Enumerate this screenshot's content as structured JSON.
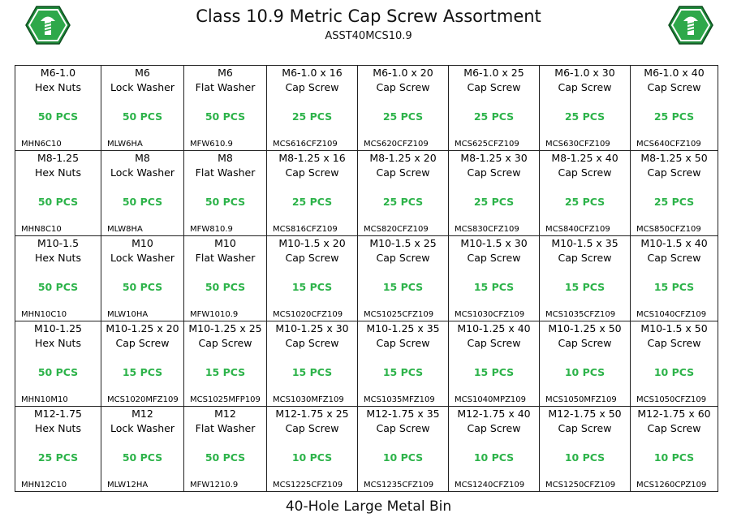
{
  "header": {
    "title": "Class 10.9 Metric Cap Screw Assortment",
    "subtitle": "ASST40MCS10.9"
  },
  "grid": {
    "rows": [
      [
        [
          "M6-1.0",
          "Hex Nuts",
          "50 PCS",
          "MHN6C10"
        ],
        [
          "M6",
          "Lock Washer",
          "50 PCS",
          "MLW6HA"
        ],
        [
          "M6",
          "Flat Washer",
          "50 PCS",
          "MFW610.9"
        ],
        [
          "M6-1.0 x 16",
          "Cap Screw",
          "25 PCS",
          "MCS616CFZ109"
        ],
        [
          "M6-1.0 x 20",
          "Cap Screw",
          "25 PCS",
          "MCS620CFZ109"
        ],
        [
          "M6-1.0 x 25",
          "Cap Screw",
          "25 PCS",
          "MCS625CFZ109"
        ],
        [
          "M6-1.0 x 30",
          "Cap Screw",
          "25 PCS",
          "MCS630CFZ109"
        ],
        [
          "M6-1.0 x 40",
          "Cap Screw",
          "25 PCS",
          "MCS640CFZ109"
        ]
      ],
      [
        [
          "M8-1.25",
          "Hex Nuts",
          "50 PCS",
          "MHN8C10"
        ],
        [
          "M8",
          "Lock Washer",
          "50 PCS",
          "MLW8HA"
        ],
        [
          "M8",
          "Flat Washer",
          "50 PCS",
          "MFW810.9"
        ],
        [
          "M8-1.25 x 16",
          "Cap Screw",
          "25 PCS",
          "MCS816CFZ109"
        ],
        [
          "M8-1.25 x 20",
          "Cap Screw",
          "25 PCS",
          "MCS820CFZ109"
        ],
        [
          "M8-1.25 x 30",
          "Cap Screw",
          "25 PCS",
          "MCS830CFZ109"
        ],
        [
          "M8-1.25 x 40",
          "Cap Screw",
          "25 PCS",
          "MCS840CFZ109"
        ],
        [
          "M8-1.25 x 50",
          "Cap Screw",
          "25 PCS",
          "MCS850CFZ109"
        ]
      ],
      [
        [
          "M10-1.5",
          "Hex Nuts",
          "50 PCS",
          "MHN10C10"
        ],
        [
          "M10",
          "Lock Washer",
          "50 PCS",
          "MLW10HA"
        ],
        [
          "M10",
          "Flat Washer",
          "50 PCS",
          "MFW1010.9"
        ],
        [
          "M10-1.5 x 20",
          "Cap Screw",
          "15 PCS",
          "MCS1020CFZ109"
        ],
        [
          "M10-1.5 x 25",
          "Cap Screw",
          "15 PCS",
          "MCS1025CFZ109"
        ],
        [
          "M10-1.5 x 30",
          "Cap Screw",
          "15 PCS",
          "MCS1030CFZ109"
        ],
        [
          "M10-1.5 x 35",
          "Cap Screw",
          "15 PCS",
          "MCS1035CFZ109"
        ],
        [
          "M10-1.5 x 40",
          "Cap Screw",
          "15 PCS",
          "MCS1040CFZ109"
        ]
      ],
      [
        [
          "M10-1.25",
          "Hex Nuts",
          "50 PCS",
          "MHN10M10"
        ],
        [
          "M10-1.25 x 20",
          "Cap Screw",
          "15 PCS",
          "MCS1020MFZ109"
        ],
        [
          "M10-1.25 x 25",
          "Cap Screw",
          "15 PCS",
          "MCS1025MFP109"
        ],
        [
          "M10-1.25 x 30",
          "Cap Screw",
          "15 PCS",
          "MCS1030MFZ109"
        ],
        [
          "M10-1.25 x 35",
          "Cap Screw",
          "15 PCS",
          "MCS1035MFZ109"
        ],
        [
          "M10-1.25 x 40",
          "Cap Screw",
          "15 PCS",
          "MCS1040MPZ109"
        ],
        [
          "M10-1.25 x 50",
          "Cap Screw",
          "10 PCS",
          "MCS1050MFZ109"
        ],
        [
          "M10-1.5 x 50",
          "Cap Screw",
          "10 PCS",
          "MCS1050CFZ109"
        ]
      ],
      [
        [
          "M12-1.75",
          "Hex Nuts",
          "25 PCS",
          "MHN12C10"
        ],
        [
          "M12",
          "Lock Washer",
          "50 PCS",
          "MLW12HA"
        ],
        [
          "M12",
          "Flat Washer",
          "50 PCS",
          "MFW1210.9"
        ],
        [
          "M12-1.75 x 25",
          "Cap Screw",
          "10 PCS",
          "MCS1225CFZ109"
        ],
        [
          "M12-1.75 x 35",
          "Cap Screw",
          "10 PCS",
          "MCS1235CFZ109"
        ],
        [
          "M12-1.75 x 40",
          "Cap Screw",
          "10 PCS",
          "MCS1240CFZ109"
        ],
        [
          "M12-1.75 x 50",
          "Cap Screw",
          "10 PCS",
          "MCS1250CFZ109"
        ],
        [
          "M12-1.75 x 60",
          "Cap Screw",
          "10 PCS",
          "MCS1260CPZ109"
        ]
      ]
    ]
  },
  "footer": "40-Hole Large Metal Bin"
}
